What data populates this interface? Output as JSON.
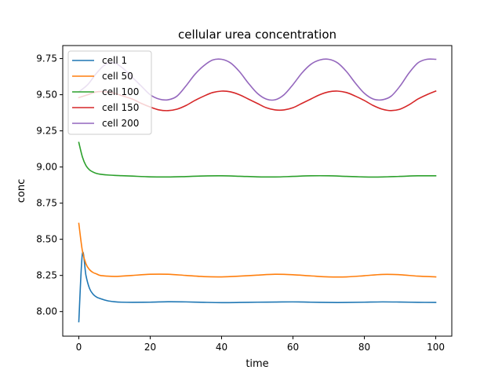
{
  "chart_data": {
    "type": "line",
    "title": "cellular urea concentration",
    "xlabel": "time",
    "ylabel": "conc",
    "xlim": [
      -4.5,
      104.5
    ],
    "ylim": [
      7.83,
      9.84
    ],
    "xticks": [
      0,
      20,
      40,
      60,
      80,
      100
    ],
    "xtick_labels": [
      "0",
      "20",
      "40",
      "60",
      "80",
      "100"
    ],
    "yticks": [
      8.0,
      8.25,
      8.5,
      8.75,
      9.0,
      9.25,
      9.5,
      9.75
    ],
    "ytick_labels": [
      "8.00",
      "8.25",
      "8.50",
      "8.75",
      "9.00",
      "9.25",
      "9.50",
      "9.75"
    ],
    "grid": false,
    "legend_position": "upper-left",
    "series": [
      {
        "name": "cell 1",
        "color": "#1f77b4",
        "x": [
          0,
          1,
          2,
          3,
          4,
          5,
          6,
          8,
          10,
          12,
          15,
          20,
          25,
          30,
          35,
          40,
          45,
          50,
          55,
          60,
          65,
          70,
          75,
          80,
          85,
          90,
          95,
          100
        ],
        "values": [
          7.93,
          8.4,
          8.25,
          8.16,
          8.12,
          8.1,
          8.09,
          8.075,
          8.068,
          8.065,
          8.064,
          8.065,
          8.068,
          8.067,
          8.064,
          8.062,
          8.063,
          8.065,
          8.066,
          8.067,
          8.065,
          8.063,
          8.063,
          8.065,
          8.067,
          8.066,
          8.064,
          8.063
        ]
      },
      {
        "name": "cell 50",
        "color": "#ff7f0e",
        "x": [
          0,
          1,
          2,
          3,
          4,
          5,
          6,
          8,
          10,
          12,
          15,
          20,
          25,
          30,
          35,
          40,
          45,
          50,
          55,
          60,
          65,
          70,
          75,
          80,
          85,
          90,
          95,
          100
        ],
        "values": [
          8.61,
          8.42,
          8.33,
          8.29,
          8.27,
          8.26,
          8.25,
          8.245,
          8.243,
          8.245,
          8.25,
          8.258,
          8.258,
          8.25,
          8.242,
          8.24,
          8.245,
          8.252,
          8.258,
          8.255,
          8.247,
          8.24,
          8.24,
          8.248,
          8.257,
          8.255,
          8.245,
          8.24
        ]
      },
      {
        "name": "cell 100",
        "color": "#2ca02c",
        "x": [
          0,
          1,
          2,
          3,
          4,
          5,
          6,
          8,
          10,
          12,
          15,
          20,
          25,
          30,
          35,
          40,
          45,
          50,
          55,
          60,
          65,
          70,
          75,
          80,
          85,
          90,
          95,
          100
        ],
        "values": [
          9.17,
          9.07,
          9.01,
          8.98,
          8.965,
          8.955,
          8.95,
          8.945,
          8.942,
          8.94,
          8.937,
          8.932,
          8.931,
          8.934,
          8.938,
          8.939,
          8.936,
          8.932,
          8.931,
          8.935,
          8.939,
          8.939,
          8.935,
          8.931,
          8.931,
          8.935,
          8.939,
          8.939
        ]
      },
      {
        "name": "cell 150",
        "color": "#d62728",
        "x": [
          0,
          2.5,
          5,
          7.5,
          10,
          12.5,
          15,
          17.5,
          20,
          22.5,
          25,
          27.5,
          30,
          32.5,
          35,
          37.5,
          40,
          42.5,
          45,
          47.5,
          50,
          52.5,
          55,
          57.5,
          60,
          62.5,
          65,
          67.5,
          70,
          72.5,
          75,
          77.5,
          80,
          82.5,
          85,
          87.5,
          90,
          92.5,
          95,
          97.5,
          100
        ],
        "values": [
          9.48,
          9.5,
          9.52,
          9.52,
          9.51,
          9.49,
          9.47,
          9.44,
          9.415,
          9.395,
          9.39,
          9.4,
          9.425,
          9.46,
          9.49,
          9.515,
          9.525,
          9.52,
          9.5,
          9.47,
          9.44,
          9.41,
          9.395,
          9.395,
          9.41,
          9.44,
          9.47,
          9.5,
          9.52,
          9.525,
          9.515,
          9.49,
          9.46,
          9.425,
          9.4,
          9.39,
          9.4,
          9.43,
          9.47,
          9.5,
          9.525
        ]
      },
      {
        "name": "cell 200",
        "color": "#9467bd",
        "x": [
          0,
          2.5,
          5,
          7.5,
          10,
          12.5,
          15,
          17.5,
          20,
          22.5,
          25,
          27.5,
          30,
          32.5,
          35,
          37.5,
          40,
          42.5,
          45,
          47.5,
          50,
          52.5,
          55,
          57.5,
          60,
          62.5,
          65,
          67.5,
          70,
          72.5,
          75,
          77.5,
          80,
          82.5,
          85,
          87.5,
          90,
          92.5,
          95,
          97.5,
          100
        ],
        "values": [
          9.52,
          9.57,
          9.65,
          9.71,
          9.72,
          9.68,
          9.62,
          9.56,
          9.5,
          9.47,
          9.465,
          9.49,
          9.56,
          9.64,
          9.7,
          9.74,
          9.745,
          9.72,
          9.66,
          9.58,
          9.51,
          9.47,
          9.465,
          9.5,
          9.57,
          9.65,
          9.71,
          9.74,
          9.745,
          9.72,
          9.66,
          9.58,
          9.51,
          9.47,
          9.465,
          9.49,
          9.56,
          9.65,
          9.72,
          9.745,
          9.745
        ]
      }
    ]
  }
}
